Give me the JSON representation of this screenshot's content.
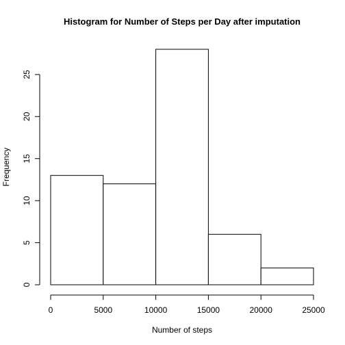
{
  "chart_data": {
    "type": "bar",
    "title": "Histogram for Number of Steps per Day after imputation",
    "xlabel": "Number of steps",
    "ylabel": "Frequency",
    "bins": [
      {
        "start": 0,
        "end": 5000,
        "count": 13
      },
      {
        "start": 5000,
        "end": 10000,
        "count": 12
      },
      {
        "start": 10000,
        "end": 15000,
        "count": 28
      },
      {
        "start": 15000,
        "end": 20000,
        "count": 6
      },
      {
        "start": 20000,
        "end": 25000,
        "count": 2
      }
    ],
    "xlim": [
      0,
      25000
    ],
    "ylim": [
      0,
      28
    ],
    "xticks": [
      0,
      5000,
      10000,
      15000,
      20000,
      25000
    ],
    "yticks": [
      0,
      5,
      10,
      15,
      20,
      25
    ],
    "grid": false,
    "legend": "none"
  }
}
